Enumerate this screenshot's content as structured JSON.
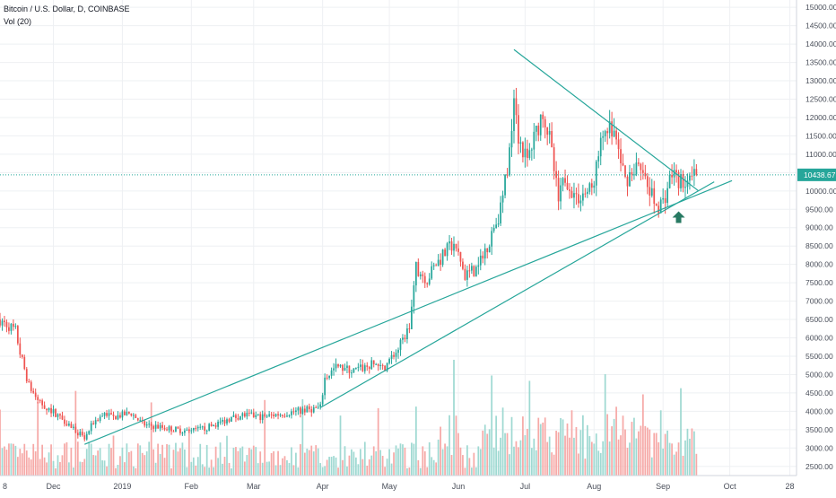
{
  "legend": {
    "symbol": "Bitcoin / U.S. Dollar, D, COINBASE",
    "indicator": "Vol (20)"
  },
  "colors": {
    "up": "#26a69a",
    "down": "#ef5350",
    "volume_up": "#9fd9d2",
    "volume_down": "#f6a9a7",
    "trendline": "#26a69a",
    "arrow": "#287a63",
    "grid": "#eef0f3",
    "axis_text": "#4a4f5a",
    "price_label_bg": "#26a69a"
  },
  "price_label": "10438.67",
  "chart_data": {
    "type": "candlestick",
    "title": "Bitcoin / U.S. Dollar, D, COINBASE",
    "indicator": "Vol (20)",
    "last_price": 10438.67,
    "ylim": [
      2250,
      15200
    ],
    "y_ticks": [
      "2500.00",
      "3000.00",
      "3500.00",
      "4000.00",
      "4500.00",
      "5000.00",
      "5500.00",
      "6000.00",
      "6500.00",
      "7000.00",
      "7500.00",
      "8000.00",
      "8500.00",
      "9000.00",
      "9500.00",
      "10000.00",
      "10500.00",
      "11000.00",
      "11500.00",
      "12000.00",
      "12500.00",
      "13000.00",
      "13500.00",
      "14000.00",
      "14500.00",
      "15000.00"
    ],
    "x_range": [
      "2018-11-07",
      "2019-10-31"
    ],
    "x_ticks": [
      {
        "date": "2018-11-01",
        "label": "8"
      },
      {
        "date": "2018-12-01",
        "label": "Dec"
      },
      {
        "date": "2019-01-01",
        "label": "2019"
      },
      {
        "date": "2019-02-01",
        "label": "Feb"
      },
      {
        "date": "2019-03-01",
        "label": "Mar"
      },
      {
        "date": "2019-04-01",
        "label": "Apr"
      },
      {
        "date": "2019-05-01",
        "label": "May"
      },
      {
        "date": "2019-06-01",
        "label": "Jun"
      },
      {
        "date": "2019-07-01",
        "label": "Jul"
      },
      {
        "date": "2019-08-01",
        "label": "Aug"
      },
      {
        "date": "2019-09-01",
        "label": "Sep"
      },
      {
        "date": "2019-10-01",
        "label": "Oct"
      },
      {
        "date": "2019-10-28",
        "label": "28"
      }
    ],
    "price_path": [
      [
        "2018-11-07",
        6500
      ],
      [
        "2018-11-14",
        6200
      ],
      [
        "2018-11-16",
        5600
      ],
      [
        "2018-11-20",
        4700
      ],
      [
        "2018-11-24",
        4300
      ],
      [
        "2018-11-28",
        4100
      ],
      [
        "2018-12-03",
        3900
      ],
      [
        "2018-12-09",
        3600
      ],
      [
        "2018-12-15",
        3250
      ],
      [
        "2018-12-19",
        3700
      ],
      [
        "2018-12-24",
        3950
      ],
      [
        "2018-12-28",
        3850
      ],
      [
        "2019-01-05",
        3950
      ],
      [
        "2019-01-10",
        3650
      ],
      [
        "2019-01-20",
        3550
      ],
      [
        "2019-01-31",
        3450
      ],
      [
        "2019-02-08",
        3550
      ],
      [
        "2019-02-18",
        3800
      ],
      [
        "2019-02-24",
        3900
      ],
      [
        "2019-03-05",
        3850
      ],
      [
        "2019-03-15",
        3950
      ],
      [
        "2019-03-31",
        4100
      ],
      [
        "2019-04-02",
        4900
      ],
      [
        "2019-04-07",
        5200
      ],
      [
        "2019-04-15",
        5100
      ],
      [
        "2019-04-25",
        5300
      ],
      [
        "2019-04-28",
        5150
      ],
      [
        "2019-05-05",
        5700
      ],
      [
        "2019-05-10",
        6300
      ],
      [
        "2019-05-13",
        7900
      ],
      [
        "2019-05-18",
        7600
      ],
      [
        "2019-05-22",
        8000
      ],
      [
        "2019-05-30",
        8600
      ],
      [
        "2019-06-04",
        7700
      ],
      [
        "2019-06-10",
        7900
      ],
      [
        "2019-06-15",
        8700
      ],
      [
        "2019-06-20",
        9500
      ],
      [
        "2019-06-24",
        11000
      ],
      [
        "2019-06-26",
        12800
      ],
      [
        "2019-06-28",
        11500
      ],
      [
        "2019-07-02",
        10800
      ],
      [
        "2019-07-09",
        12200
      ],
      [
        "2019-07-12",
        11400
      ],
      [
        "2019-07-16",
        9700
      ],
      [
        "2019-07-19",
        10400
      ],
      [
        "2019-07-24",
        9800
      ],
      [
        "2019-07-31",
        10050
      ],
      [
        "2019-08-06",
        11800
      ],
      [
        "2019-08-10",
        11600
      ],
      [
        "2019-08-15",
        10300
      ],
      [
        "2019-08-20",
        10700
      ],
      [
        "2019-08-25",
        10100
      ],
      [
        "2019-08-29",
        9600
      ],
      [
        "2019-09-01",
        9700
      ],
      [
        "2019-09-05",
        10500
      ],
      [
        "2019-09-10",
        10200
      ],
      [
        "2019-09-14",
        10300
      ],
      [
        "2019-09-16",
        10438.67
      ]
    ],
    "trendlines": [
      {
        "from": [
          "2018-12-15",
          3100
        ],
        "to": [
          "2019-10-02",
          10280
        ]
      },
      {
        "from": [
          "2019-03-31",
          4100
        ],
        "to": [
          "2019-09-24",
          10250
        ]
      },
      {
        "from": [
          "2019-06-26",
          13850
        ],
        "to": [
          "2019-09-17",
          10000
        ]
      }
    ],
    "annotations": [
      {
        "type": "up-arrow",
        "date": "2019-09-08",
        "value": 9300
      }
    ]
  }
}
